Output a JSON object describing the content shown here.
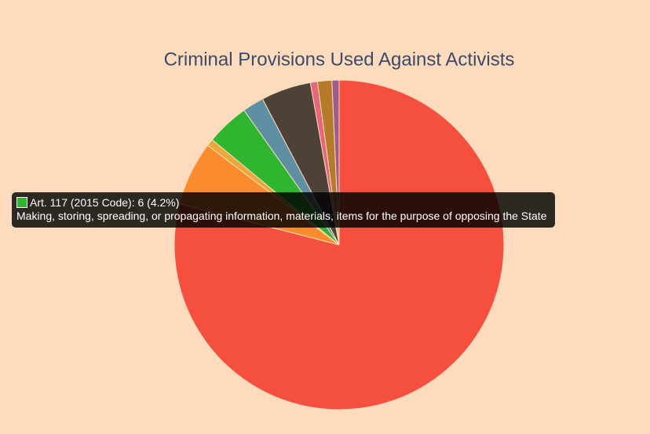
{
  "chart_data": {
    "type": "pie",
    "title": "Criminal Provisions Used Against Activists",
    "categories": [
      null,
      null,
      null,
      null,
      null,
      null,
      null,
      null,
      null
    ],
    "values": [
      113,
      9,
      1,
      6,
      3,
      7,
      1,
      2,
      1
    ],
    "colors": [
      "#f44f3f",
      "#fb8c2d",
      "#e9a83a",
      "#2fb52f",
      "#5e8fa3",
      "#4e4138",
      "#e8667a",
      "#b57a2a",
      "#9b5c8f"
    ],
    "tooltip": {
      "title": "Art. 117 (2015 Code): 6 (4.2%)",
      "body": "Making, storing, spreading, or propagating information, materials, items for the purpose of opposing the State"
    }
  }
}
